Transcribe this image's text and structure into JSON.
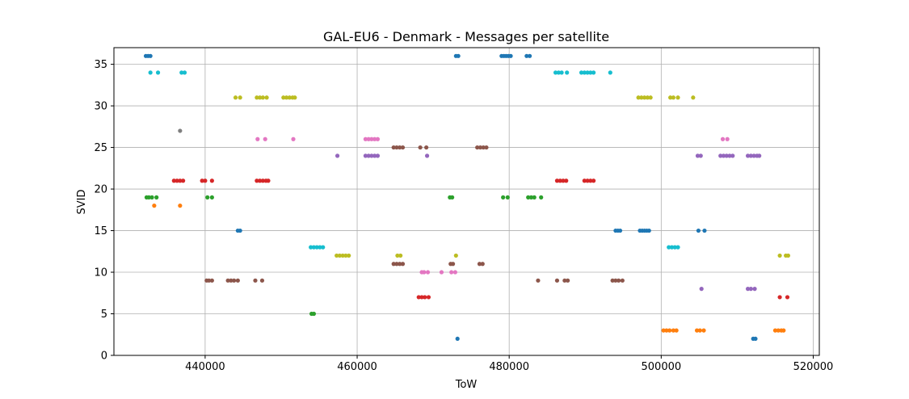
{
  "chart_data": {
    "type": "scatter",
    "title": "GAL-EU6 - Denmark - Messages per satellite",
    "xlabel": "ToW",
    "ylabel": "SVID",
    "xlim": [
      428000,
      520800
    ],
    "ylim": [
      0,
      37
    ],
    "xticks": [
      440000,
      460000,
      480000,
      500000,
      520000
    ],
    "xtick_labels": [
      "440000",
      "460000",
      "480000",
      "500000",
      "520000"
    ],
    "yticks": [
      0,
      5,
      10,
      15,
      20,
      25,
      30,
      35
    ],
    "ytick_labels": [
      "0",
      "5",
      "10",
      "15",
      "20",
      "25",
      "30",
      "35"
    ],
    "grid": true,
    "series": [
      {
        "color": "#1f77b4",
        "points": [
          [
            432200,
            36
          ],
          [
            432500,
            36
          ],
          [
            432800,
            36
          ],
          [
            444300,
            15
          ],
          [
            444600,
            15
          ],
          [
            473000,
            36
          ],
          [
            473300,
            36
          ],
          [
            479000,
            36
          ],
          [
            479300,
            36
          ],
          [
            479600,
            36
          ],
          [
            479900,
            36
          ],
          [
            480200,
            36
          ],
          [
            482300,
            36
          ],
          [
            482700,
            36
          ],
          [
            494000,
            15
          ],
          [
            494300,
            15
          ],
          [
            494600,
            15
          ],
          [
            497200,
            15
          ],
          [
            497500,
            15
          ],
          [
            497800,
            15
          ],
          [
            498100,
            15
          ],
          [
            498400,
            15
          ],
          [
            504900,
            15
          ],
          [
            505700,
            15
          ],
          [
            473200,
            2
          ],
          [
            512100,
            2
          ],
          [
            512400,
            2
          ]
        ]
      },
      {
        "color": "#ff7f0e",
        "points": [
          [
            433300,
            18
          ],
          [
            436700,
            18
          ],
          [
            500300,
            3
          ],
          [
            500700,
            3
          ],
          [
            501100,
            3
          ],
          [
            501600,
            3
          ],
          [
            502000,
            3
          ],
          [
            504700,
            3
          ],
          [
            505100,
            3
          ],
          [
            505600,
            3
          ],
          [
            515000,
            3
          ],
          [
            515400,
            3
          ],
          [
            515800,
            3
          ],
          [
            516100,
            3
          ]
        ]
      },
      {
        "color": "#2ca02c",
        "points": [
          [
            432300,
            19
          ],
          [
            432600,
            19
          ],
          [
            433000,
            19
          ],
          [
            433600,
            19
          ],
          [
            440300,
            19
          ],
          [
            440900,
            19
          ],
          [
            454000,
            5
          ],
          [
            454300,
            5
          ],
          [
            472200,
            19
          ],
          [
            472500,
            19
          ],
          [
            479200,
            19
          ],
          [
            479800,
            19
          ],
          [
            482500,
            19
          ],
          [
            482900,
            19
          ],
          [
            483300,
            19
          ],
          [
            484200,
            19
          ]
        ]
      },
      {
        "color": "#d62728",
        "points": [
          [
            435900,
            21
          ],
          [
            436300,
            21
          ],
          [
            436700,
            21
          ],
          [
            437100,
            21
          ],
          [
            439600,
            21
          ],
          [
            440000,
            21
          ],
          [
            440900,
            21
          ],
          [
            446800,
            21
          ],
          [
            447200,
            21
          ],
          [
            447600,
            21
          ],
          [
            448000,
            21
          ],
          [
            448300,
            21
          ],
          [
            468100,
            7
          ],
          [
            468500,
            7
          ],
          [
            468900,
            7
          ],
          [
            469400,
            7
          ],
          [
            486300,
            21
          ],
          [
            486700,
            21
          ],
          [
            487100,
            21
          ],
          [
            487500,
            21
          ],
          [
            489900,
            21
          ],
          [
            490300,
            21
          ],
          [
            490700,
            21
          ],
          [
            491100,
            21
          ],
          [
            515600,
            7
          ],
          [
            516600,
            7
          ]
        ]
      },
      {
        "color": "#9467bd",
        "points": [
          [
            457400,
            24
          ],
          [
            461100,
            24
          ],
          [
            461500,
            24
          ],
          [
            461900,
            24
          ],
          [
            462300,
            24
          ],
          [
            462700,
            24
          ],
          [
            469200,
            24
          ],
          [
            504800,
            24
          ],
          [
            505200,
            24
          ],
          [
            505300,
            8
          ],
          [
            507800,
            24
          ],
          [
            508200,
            24
          ],
          [
            508600,
            24
          ],
          [
            509000,
            24
          ],
          [
            509400,
            24
          ],
          [
            511400,
            24
          ],
          [
            511800,
            24
          ],
          [
            512200,
            24
          ],
          [
            512600,
            24
          ],
          [
            512900,
            24
          ],
          [
            511400,
            8
          ],
          [
            511800,
            8
          ],
          [
            512300,
            8
          ]
        ]
      },
      {
        "color": "#8c564b",
        "points": [
          [
            440200,
            9
          ],
          [
            440500,
            9
          ],
          [
            440900,
            9
          ],
          [
            443000,
            9
          ],
          [
            443400,
            9
          ],
          [
            443800,
            9
          ],
          [
            444300,
            9
          ],
          [
            446600,
            9
          ],
          [
            447500,
            9
          ],
          [
            464800,
            25
          ],
          [
            465200,
            25
          ],
          [
            465600,
            25
          ],
          [
            466000,
            25
          ],
          [
            468300,
            25
          ],
          [
            469100,
            25
          ],
          [
            464800,
            11
          ],
          [
            465200,
            11
          ],
          [
            465600,
            11
          ],
          [
            466000,
            11
          ],
          [
            472300,
            11
          ],
          [
            472600,
            11
          ],
          [
            476100,
            11
          ],
          [
            476500,
            11
          ],
          [
            475800,
            25
          ],
          [
            476200,
            25
          ],
          [
            476600,
            25
          ],
          [
            477000,
            25
          ],
          [
            483800,
            9
          ],
          [
            486300,
            9
          ],
          [
            487300,
            9
          ],
          [
            487700,
            9
          ],
          [
            493600,
            9
          ],
          [
            494000,
            9
          ],
          [
            494400,
            9
          ],
          [
            494900,
            9
          ]
        ]
      },
      {
        "color": "#e377c2",
        "points": [
          [
            446900,
            26
          ],
          [
            447900,
            26
          ],
          [
            451600,
            26
          ],
          [
            461100,
            26
          ],
          [
            461500,
            26
          ],
          [
            461900,
            26
          ],
          [
            462300,
            26
          ],
          [
            462700,
            26
          ],
          [
            468500,
            10
          ],
          [
            468800,
            10
          ],
          [
            469300,
            10
          ],
          [
            471100,
            10
          ],
          [
            472400,
            10
          ],
          [
            472900,
            10
          ],
          [
            508100,
            26
          ],
          [
            508700,
            26
          ]
        ]
      },
      {
        "color": "#7f7f7f",
        "points": [
          [
            436700,
            27
          ]
        ]
      },
      {
        "color": "#bcbd22",
        "points": [
          [
            444000,
            31
          ],
          [
            444600,
            31
          ],
          [
            446800,
            31
          ],
          [
            447200,
            31
          ],
          [
            447600,
            31
          ],
          [
            448100,
            31
          ],
          [
            450300,
            31
          ],
          [
            450700,
            31
          ],
          [
            451100,
            31
          ],
          [
            451500,
            31
          ],
          [
            451800,
            31
          ],
          [
            457300,
            12
          ],
          [
            457700,
            12
          ],
          [
            458100,
            12
          ],
          [
            458500,
            12
          ],
          [
            458900,
            12
          ],
          [
            465300,
            12
          ],
          [
            465700,
            12
          ],
          [
            473000,
            12
          ],
          [
            497000,
            31
          ],
          [
            497400,
            31
          ],
          [
            497800,
            31
          ],
          [
            498200,
            31
          ],
          [
            498600,
            31
          ],
          [
            501200,
            31
          ],
          [
            501600,
            31
          ],
          [
            502200,
            31
          ],
          [
            504200,
            31
          ],
          [
            515600,
            12
          ],
          [
            516400,
            12
          ],
          [
            516700,
            12
          ]
        ]
      },
      {
        "color": "#17becf",
        "points": [
          [
            432800,
            34
          ],
          [
            433800,
            34
          ],
          [
            436900,
            34
          ],
          [
            437300,
            34
          ],
          [
            453900,
            13
          ],
          [
            454300,
            13
          ],
          [
            454700,
            13
          ],
          [
            455100,
            13
          ],
          [
            455500,
            13
          ],
          [
            486100,
            34
          ],
          [
            486500,
            34
          ],
          [
            486900,
            34
          ],
          [
            487600,
            34
          ],
          [
            489500,
            34
          ],
          [
            489900,
            34
          ],
          [
            490300,
            34
          ],
          [
            490700,
            34
          ],
          [
            491100,
            34
          ],
          [
            493300,
            34
          ],
          [
            501000,
            13
          ],
          [
            501400,
            13
          ],
          [
            501800,
            13
          ],
          [
            502200,
            13
          ]
        ]
      }
    ]
  }
}
